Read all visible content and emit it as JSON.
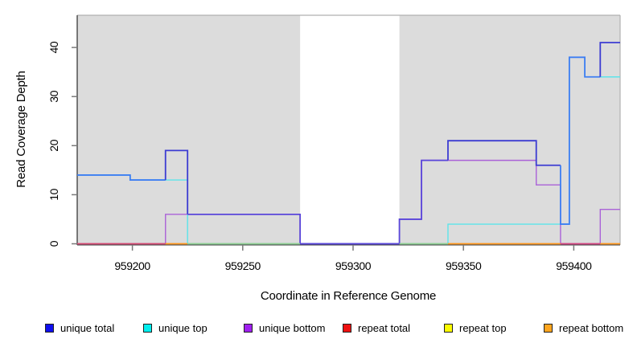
{
  "chart_data": {
    "type": "step-line",
    "title": "",
    "xlabel": "Coordinate in Reference Genome",
    "ylabel": "Read Coverage Depth",
    "xlim": [
      959175,
      959421
    ],
    "ylim": [
      0,
      46.6
    ],
    "x_ticks": [
      959200,
      959250,
      959300,
      959350,
      959400
    ],
    "y_ticks": [
      0,
      10,
      20,
      30,
      40
    ],
    "grid": false,
    "legend_position": "bottom",
    "plot_background": "#dcdcdc",
    "no_data_region": {
      "x_start": 959276,
      "x_end": 959321,
      "color": "#ffffff"
    },
    "series": [
      {
        "name": "unique total",
        "color": "#0f0fee",
        "points": [
          [
            959175,
            14
          ],
          [
            959199,
            13
          ],
          [
            959215,
            19
          ],
          [
            959225,
            6
          ],
          [
            959276,
            0
          ],
          [
            959321,
            5
          ],
          [
            959331,
            17
          ],
          [
            959343,
            21
          ],
          [
            959383,
            16
          ],
          [
            959394,
            4
          ],
          [
            959398,
            38
          ],
          [
            959405,
            34
          ],
          [
            959412,
            41
          ]
        ]
      },
      {
        "name": "unique top",
        "color": "#00eeee",
        "points": [
          [
            959175,
            14
          ],
          [
            959199,
            13
          ],
          [
            959225,
            0
          ],
          [
            959343,
            4
          ],
          [
            959398,
            38
          ],
          [
            959405,
            34
          ]
        ]
      },
      {
        "name": "unique bottom",
        "color": "#a020f0",
        "points": [
          [
            959175,
            0
          ],
          [
            959215,
            6
          ],
          [
            959276,
            0
          ],
          [
            959321,
            5
          ],
          [
            959331,
            17
          ],
          [
            959383,
            12
          ],
          [
            959394,
            0
          ],
          [
            959412,
            7
          ]
        ]
      },
      {
        "name": "repeat total",
        "color": "#ee1111",
        "points": [
          [
            959175,
            0
          ]
        ]
      },
      {
        "name": "repeat top",
        "color": "#fbfb00",
        "points": [
          [
            959175,
            0
          ]
        ]
      },
      {
        "name": "repeat bottom",
        "color": "#ffa51e",
        "points": [
          [
            959175,
            0
          ]
        ]
      }
    ],
    "render_hints": {
      "frame_dark": "#3a3a3a",
      "frame_light": "#b0b0b0",
      "tick_color": "#7a7a7a",
      "visible_line_colors": {
        "unique_top": "#5ce4ea",
        "unique_bottom": "#aa62d8"
      },
      "unique_total_segments": [
        {
          "color": "#3d7ef2",
          "points": [
            [
              959175,
              14
            ],
            [
              959199,
              14
            ],
            [
              959199,
              13
            ],
            [
              959215,
              13
            ]
          ]
        },
        {
          "color": "#3c3cd2",
          "points": [
            [
              959215,
              13
            ],
            [
              959215,
              19
            ],
            [
              959225,
              19
            ],
            [
              959225,
              6
            ]
          ]
        },
        {
          "color": "#5a46da",
          "points": [
            [
              959225,
              6
            ],
            [
              959276,
              6
            ],
            [
              959276,
              0
            ],
            [
              959321,
              0
            ],
            [
              959321,
              5
            ],
            [
              959331,
              5
            ],
            [
              959331,
              17
            ],
            [
              959343,
              17
            ]
          ]
        },
        {
          "color": "#3c3cd2",
          "points": [
            [
              959343,
              17
            ],
            [
              959343,
              21
            ],
            [
              959383,
              21
            ],
            [
              959383,
              16
            ],
            [
              959394,
              16
            ]
          ]
        },
        {
          "color": "#3d7ef2",
          "points": [
            [
              959394,
              16
            ],
            [
              959394,
              4
            ],
            [
              959398,
              4
            ],
            [
              959398,
              38
            ],
            [
              959405,
              38
            ],
            [
              959405,
              34
            ],
            [
              959412,
              34
            ]
          ]
        },
        {
          "color": "#3c3cd2",
          "points": [
            [
              959412,
              34
            ],
            [
              959412,
              41
            ],
            [
              959421,
              41
            ]
          ]
        }
      ],
      "zero_line_segments": [
        {
          "x_start": 959175,
          "x_end": 959215,
          "color": "#d6496f"
        },
        {
          "x_start": 959215,
          "x_end": 959225,
          "color": "#ff9518"
        },
        {
          "x_start": 959225,
          "x_end": 959276,
          "color": "#8fce8f"
        },
        {
          "x_start": 959276,
          "x_end": 959321,
          "color": "#5a46da"
        },
        {
          "x_start": 959321,
          "x_end": 959343,
          "color": "#8fce8f"
        },
        {
          "x_start": 959343,
          "x_end": 959394,
          "color": "#ff9518"
        },
        {
          "x_start": 959394,
          "x_end": 959412,
          "color": "#d6457f"
        },
        {
          "x_start": 959412,
          "x_end": 959421,
          "color": "#ff9518"
        }
      ]
    }
  },
  "legend": {
    "items": [
      {
        "label": "unique total",
        "color": "#0f0fee"
      },
      {
        "label": "unique top",
        "color": "#00eeee"
      },
      {
        "label": "unique bottom",
        "color": "#a020f0"
      },
      {
        "label": "repeat total",
        "color": "#ee1111"
      },
      {
        "label": "repeat top",
        "color": "#fbfb00"
      },
      {
        "label": "repeat bottom",
        "color": "#ffa51e"
      }
    ]
  }
}
